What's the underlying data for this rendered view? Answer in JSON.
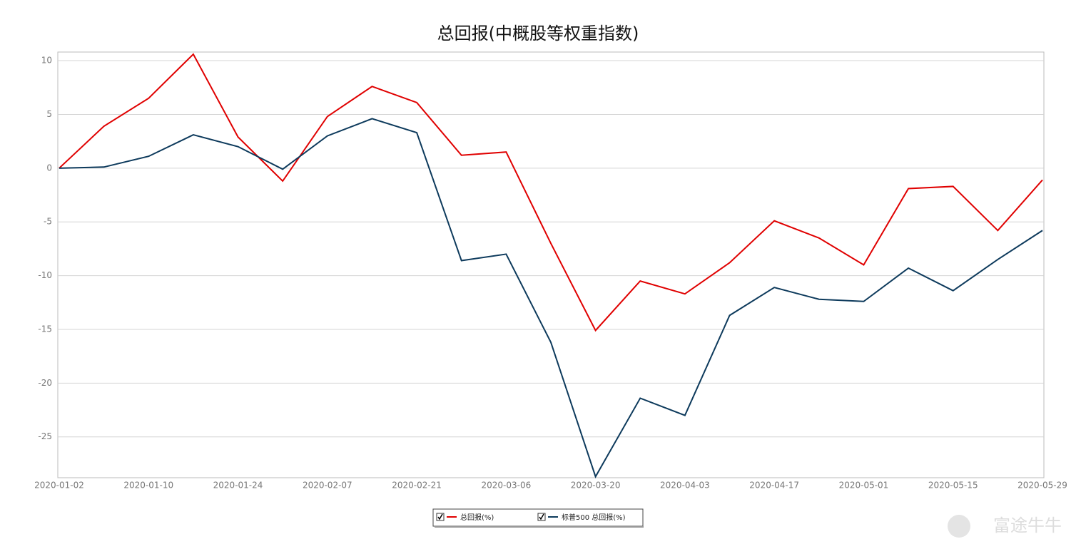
{
  "chart_data": {
    "type": "line",
    "title": "总回报(中概股等权重指数)",
    "categories": [
      "2020-01-02",
      null,
      "2020-01-10",
      null,
      "2020-01-24",
      null,
      "2020-02-07",
      null,
      "2020-02-21",
      null,
      "2020-03-06",
      null,
      "2020-03-20",
      null,
      "2020-04-03",
      null,
      "2020-04-17",
      null,
      "2020-05-01",
      null,
      "2020-05-15",
      null,
      "2020-05-29"
    ],
    "series": [
      {
        "name": "总回报(%)",
        "color": "#e00000",
        "values": [
          0,
          3.9,
          6.5,
          10.6,
          2.9,
          -1.2,
          4.8,
          7.6,
          6.1,
          1.2,
          1.5,
          -7.0,
          -15.1,
          -10.5,
          -11.7,
          -8.8,
          -4.9,
          -6.5,
          -9.0,
          -1.9,
          -1.7,
          -5.8,
          -1.1
        ]
      },
      {
        "name": "标普500 总回报(%)",
        "color": "#0d3a5c",
        "values": [
          0,
          0.1,
          1.1,
          3.1,
          2.0,
          -0.1,
          3.0,
          4.6,
          3.3,
          -8.6,
          -8.0,
          -16.2,
          -28.7,
          -21.4,
          -23.0,
          -13.7,
          -11.1,
          -12.2,
          -12.4,
          -9.3,
          -11.4,
          -8.5,
          -5.8
        ]
      }
    ],
    "ylim": [
      -28.8,
      10.8
    ],
    "yticks": [
      -25,
      -20,
      -15,
      -10,
      -5,
      0,
      5,
      10
    ],
    "grid": true,
    "legend": "bottom",
    "watermark": "富途牛牛"
  }
}
